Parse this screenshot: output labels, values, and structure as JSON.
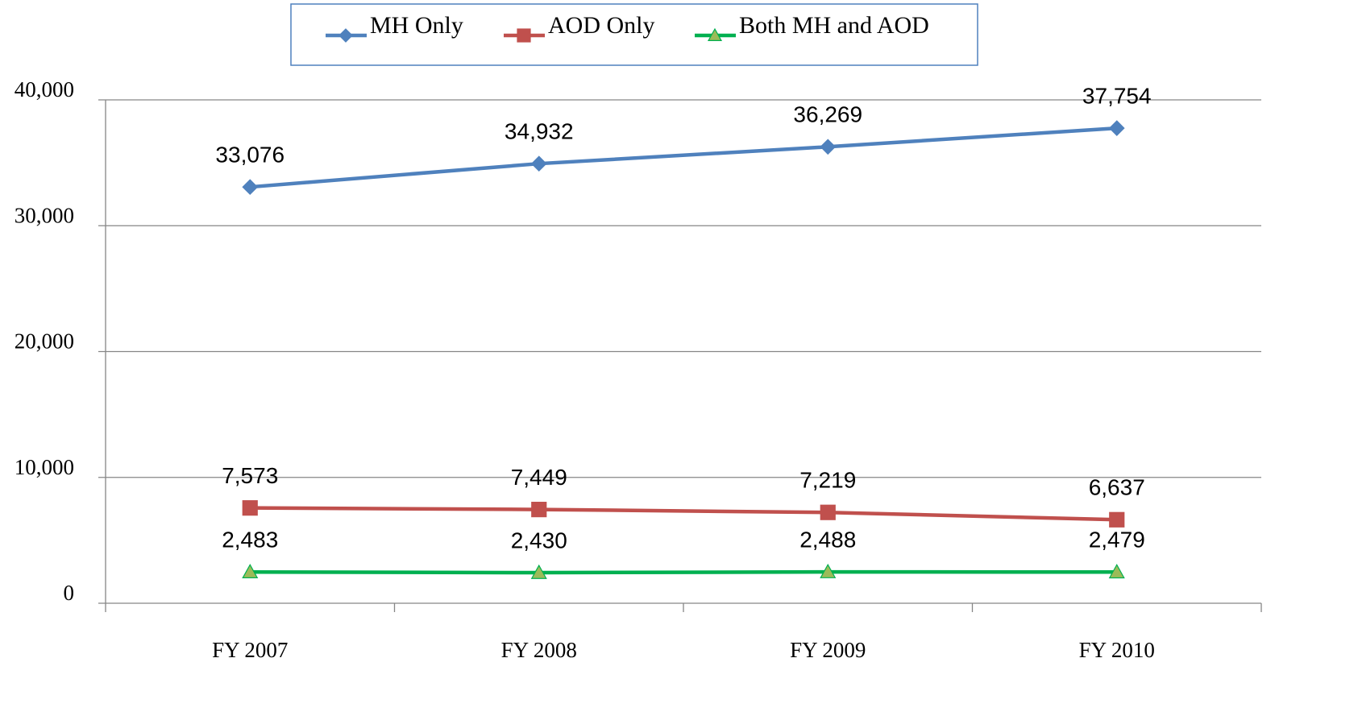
{
  "chart_data": {
    "type": "line",
    "categories": [
      "FY 2007",
      "FY 2008",
      "FY 2009",
      "FY 2010"
    ],
    "series": [
      {
        "name": "MH Only",
        "color": "#4f81bd",
        "marker": "diamond",
        "marker_color": "#4f81bd",
        "values": [
          33076,
          34932,
          36269,
          37754
        ],
        "value_labels": [
          "33,076",
          "34,932",
          "36,269",
          "37,754"
        ]
      },
      {
        "name": "AOD Only",
        "color": "#c0504d",
        "marker": "square",
        "marker_color": "#c0504d",
        "values": [
          7573,
          7449,
          7219,
          6637
        ],
        "value_labels": [
          "7,573",
          "7,449",
          "7,219",
          "6,637"
        ]
      },
      {
        "name": "Both MH and AOD",
        "color": "#00b050",
        "marker": "triangle",
        "marker_color": "#9bbb59",
        "values": [
          2483,
          2430,
          2488,
          2479
        ],
        "value_labels": [
          "2,483",
          "2,430",
          "2,488",
          "2,479"
        ]
      }
    ],
    "ylim": [
      0,
      40000
    ],
    "yticks": [
      0,
      {
        "value": 10000,
        "label": "10,000"
      },
      {
        "value": 20000,
        "label": "20,000"
      },
      {
        "value": 30000,
        "label": "30,000"
      },
      {
        "value": 40000,
        "label": "40,000"
      }
    ],
    "grid": true,
    "legend": "top"
  }
}
